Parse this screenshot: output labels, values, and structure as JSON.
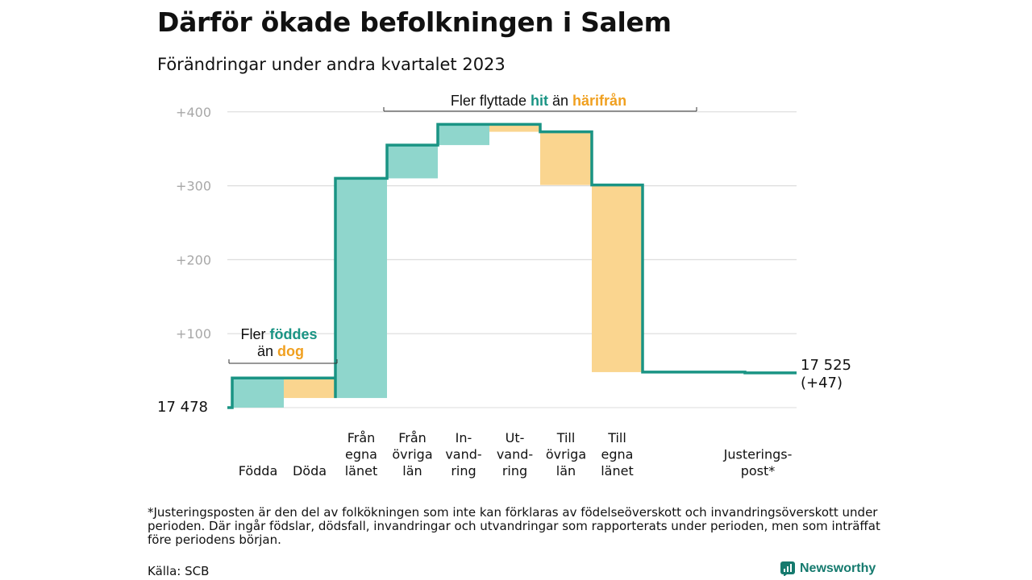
{
  "title": "Därför ökade befolkningen i Salem",
  "subtitle": "Förändringar under andra kvartalet 2023",
  "colors": {
    "increase": "#8fd6cc",
    "decrease": "#fad58f",
    "line": "#1a9484",
    "teal_text": "#1a9484",
    "orange_text": "#f0a020",
    "grid": "#dcdcdc",
    "tick": "#a8a8a8"
  },
  "chart_data": {
    "type": "waterfall",
    "start_label": "17 478",
    "end_label": "17 525",
    "end_change_label": "(+47)",
    "y_tick_labels": [
      "+100",
      "+200",
      "+300",
      "+400"
    ],
    "y_ticks": [
      100,
      200,
      300,
      400
    ],
    "ylim": [
      0,
      400
    ],
    "grid": true,
    "steps": [
      {
        "label": [
          "Födda"
        ],
        "value": 40
      },
      {
        "label": [
          "Döda"
        ],
        "value": -27
      },
      {
        "label": [
          "Från",
          "egna",
          "länet"
        ],
        "value": 297
      },
      {
        "label": [
          "Från",
          "övriga",
          "län"
        ],
        "value": 45
      },
      {
        "label": [
          "In-",
          "vand-",
          "ring"
        ],
        "value": 28
      },
      {
        "label": [
          "Ut-",
          "vand-",
          "ring"
        ],
        "value": -10
      },
      {
        "label": [
          "Till",
          "övriga",
          "län"
        ],
        "value": -72
      },
      {
        "label": [
          "Till",
          "egna",
          "länet"
        ],
        "value": -253
      },
      {
        "label": [
          "Justerings-",
          "post*"
        ],
        "value": -1
      }
    ],
    "annotations": {
      "births": {
        "line1_prefix": "Fler",
        "line1_highlight": "föddes",
        "line2_prefix": "än",
        "line2_highlight": "dog"
      },
      "migration": {
        "prefix": "Fler flyttade",
        "highlight1": "hit",
        "middle": "än",
        "highlight2": "härifrån"
      }
    }
  },
  "footnote": "*Justeringsposten är den del av folkökningen som inte kan förklaras av födelseöverskott och invandringsöverskott under perioden. Där ingår födslar, dödsfall, invandringar och utvandringar som rapporterats under perioden, men som inträffat före periodens början.",
  "source": "Källa: SCB",
  "brand": "Newsworthy"
}
